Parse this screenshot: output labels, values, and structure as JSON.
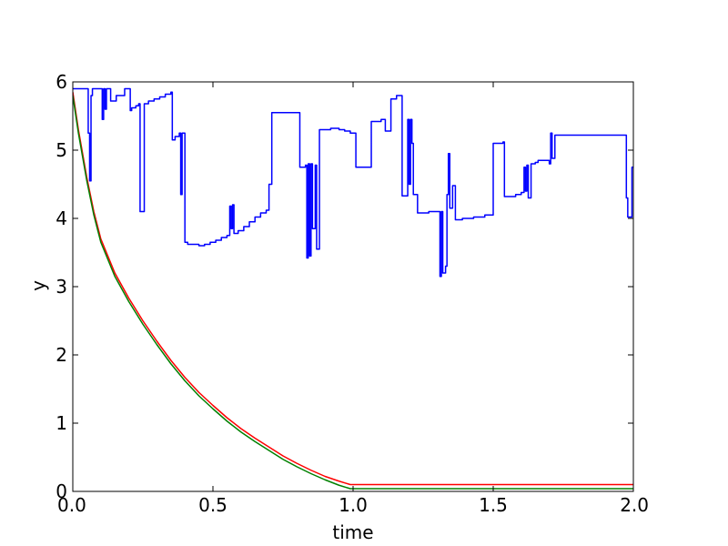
{
  "chart_data": {
    "type": "line",
    "title": "",
    "xlabel": "time",
    "ylabel": "y",
    "xlim": [
      0.0,
      2.0
    ],
    "ylim": [
      0,
      6
    ],
    "x_ticks": [
      0.0,
      0.5,
      1.0,
      1.5,
      2.0
    ],
    "x_tick_labels": [
      "0.0",
      "0.5",
      "1.0",
      "1.5",
      "2.0"
    ],
    "y_ticks": [
      0,
      1,
      2,
      3,
      4,
      5,
      6
    ],
    "y_tick_labels": [
      "0",
      "1",
      "2",
      "3",
      "4",
      "5",
      "6"
    ],
    "grid": false,
    "series": [
      {
        "color": "#0000ff",
        "step": true,
        "points": [
          [
            0.0,
            5.9
          ],
          [
            0.05,
            5.9
          ],
          [
            0.055,
            5.25
          ],
          [
            0.06,
            4.55
          ],
          [
            0.065,
            5.8
          ],
          [
            0.07,
            5.9
          ],
          [
            0.1,
            5.9
          ],
          [
            0.105,
            5.45
          ],
          [
            0.11,
            5.9
          ],
          [
            0.115,
            5.6
          ],
          [
            0.12,
            5.9
          ],
          [
            0.13,
            5.9
          ],
          [
            0.135,
            5.72
          ],
          [
            0.15,
            5.72
          ],
          [
            0.155,
            5.8
          ],
          [
            0.18,
            5.8
          ],
          [
            0.185,
            5.9
          ],
          [
            0.2,
            5.9
          ],
          [
            0.205,
            5.58
          ],
          [
            0.21,
            5.62
          ],
          [
            0.225,
            5.65
          ],
          [
            0.235,
            5.68
          ],
          [
            0.24,
            4.1
          ],
          [
            0.25,
            4.1
          ],
          [
            0.255,
            5.68
          ],
          [
            0.27,
            5.72
          ],
          [
            0.29,
            5.75
          ],
          [
            0.31,
            5.78
          ],
          [
            0.33,
            5.82
          ],
          [
            0.35,
            5.85
          ],
          [
            0.355,
            5.15
          ],
          [
            0.365,
            5.2
          ],
          [
            0.38,
            5.25
          ],
          [
            0.385,
            4.35
          ],
          [
            0.39,
            5.25
          ],
          [
            0.4,
            3.65
          ],
          [
            0.41,
            3.62
          ],
          [
            0.45,
            3.6
          ],
          [
            0.47,
            3.62
          ],
          [
            0.49,
            3.65
          ],
          [
            0.51,
            3.68
          ],
          [
            0.53,
            3.72
          ],
          [
            0.55,
            3.75
          ],
          [
            0.56,
            4.18
          ],
          [
            0.565,
            3.85
          ],
          [
            0.57,
            4.2
          ],
          [
            0.575,
            3.78
          ],
          [
            0.59,
            3.82
          ],
          [
            0.61,
            3.88
          ],
          [
            0.63,
            3.95
          ],
          [
            0.65,
            4.02
          ],
          [
            0.67,
            4.08
          ],
          [
            0.69,
            4.12
          ],
          [
            0.7,
            4.5
          ],
          [
            0.71,
            5.55
          ],
          [
            0.8,
            5.55
          ],
          [
            0.81,
            4.75
          ],
          [
            0.83,
            4.78
          ],
          [
            0.835,
            3.42
          ],
          [
            0.84,
            4.8
          ],
          [
            0.845,
            3.45
          ],
          [
            0.85,
            4.8
          ],
          [
            0.855,
            3.85
          ],
          [
            0.865,
            4.78
          ],
          [
            0.87,
            3.55
          ],
          [
            0.875,
            3.55
          ],
          [
            0.88,
            5.3
          ],
          [
            0.92,
            5.32
          ],
          [
            0.95,
            5.3
          ],
          [
            0.97,
            5.28
          ],
          [
            0.99,
            5.25
          ],
          [
            1.0,
            5.25
          ],
          [
            1.01,
            4.75
          ],
          [
            1.05,
            4.75
          ],
          [
            1.065,
            5.42
          ],
          [
            1.1,
            5.45
          ],
          [
            1.115,
            5.28
          ],
          [
            1.13,
            5.28
          ],
          [
            1.135,
            5.75
          ],
          [
            1.155,
            5.8
          ],
          [
            1.17,
            5.8
          ],
          [
            1.175,
            4.33
          ],
          [
            1.19,
            4.33
          ],
          [
            1.195,
            5.45
          ],
          [
            1.2,
            4.5
          ],
          [
            1.205,
            5.45
          ],
          [
            1.21,
            5.1
          ],
          [
            1.215,
            4.35
          ],
          [
            1.225,
            4.35
          ],
          [
            1.23,
            4.08
          ],
          [
            1.26,
            4.08
          ],
          [
            1.27,
            4.1
          ],
          [
            1.305,
            4.1
          ],
          [
            1.31,
            3.15
          ],
          [
            1.315,
            4.1
          ],
          [
            1.32,
            3.2
          ],
          [
            1.325,
            3.2
          ],
          [
            1.33,
            3.3
          ],
          [
            1.335,
            4.35
          ],
          [
            1.34,
            4.95
          ],
          [
            1.345,
            4.15
          ],
          [
            1.35,
            4.15
          ],
          [
            1.355,
            4.48
          ],
          [
            1.365,
            3.98
          ],
          [
            1.39,
            4.0
          ],
          [
            1.43,
            4.02
          ],
          [
            1.47,
            4.05
          ],
          [
            1.49,
            4.05
          ],
          [
            1.5,
            5.05
          ],
          [
            1.5,
            5.1
          ],
          [
            1.535,
            5.12
          ],
          [
            1.54,
            4.32
          ],
          [
            1.56,
            4.32
          ],
          [
            1.58,
            4.35
          ],
          [
            1.6,
            4.38
          ],
          [
            1.61,
            4.75
          ],
          [
            1.615,
            4.4
          ],
          [
            1.62,
            4.78
          ],
          [
            1.625,
            4.3
          ],
          [
            1.63,
            4.3
          ],
          [
            1.635,
            4.8
          ],
          [
            1.65,
            4.82
          ],
          [
            1.66,
            4.85
          ],
          [
            1.69,
            4.85
          ],
          [
            1.7,
            4.8
          ],
          [
            1.705,
            5.25
          ],
          [
            1.71,
            4.88
          ],
          [
            1.72,
            5.22
          ],
          [
            1.75,
            5.22
          ],
          [
            1.8,
            5.22
          ],
          [
            1.85,
            5.22
          ],
          [
            1.9,
            5.22
          ],
          [
            1.97,
            5.22
          ],
          [
            1.975,
            4.3
          ],
          [
            1.98,
            4.02
          ],
          [
            1.99,
            4.02
          ],
          [
            1.995,
            4.75
          ],
          [
            2.0,
            4.75
          ]
        ]
      },
      {
        "color": "#ff0000",
        "step": false,
        "points": [
          [
            0.0,
            5.85
          ],
          [
            0.02,
            5.3
          ],
          [
            0.05,
            4.6
          ],
          [
            0.075,
            4.1
          ],
          [
            0.1,
            3.7
          ],
          [
            0.15,
            3.2
          ],
          [
            0.2,
            2.83
          ],
          [
            0.25,
            2.5
          ],
          [
            0.3,
            2.2
          ],
          [
            0.35,
            1.92
          ],
          [
            0.4,
            1.67
          ],
          [
            0.45,
            1.45
          ],
          [
            0.5,
            1.26
          ],
          [
            0.55,
            1.08
          ],
          [
            0.6,
            0.92
          ],
          [
            0.65,
            0.78
          ],
          [
            0.7,
            0.65
          ],
          [
            0.75,
            0.52
          ],
          [
            0.8,
            0.41
          ],
          [
            0.85,
            0.31
          ],
          [
            0.9,
            0.22
          ],
          [
            0.95,
            0.15
          ],
          [
            0.99,
            0.1
          ],
          [
            1.01,
            0.1
          ],
          [
            1.5,
            0.1
          ],
          [
            2.0,
            0.1
          ]
        ]
      },
      {
        "color": "#008000",
        "step": false,
        "points": [
          [
            0.0,
            5.8
          ],
          [
            0.02,
            5.25
          ],
          [
            0.05,
            4.55
          ],
          [
            0.075,
            4.05
          ],
          [
            0.1,
            3.65
          ],
          [
            0.15,
            3.15
          ],
          [
            0.2,
            2.78
          ],
          [
            0.25,
            2.45
          ],
          [
            0.3,
            2.15
          ],
          [
            0.35,
            1.87
          ],
          [
            0.4,
            1.62
          ],
          [
            0.45,
            1.4
          ],
          [
            0.5,
            1.21
          ],
          [
            0.55,
            1.03
          ],
          [
            0.6,
            0.87
          ],
          [
            0.65,
            0.73
          ],
          [
            0.7,
            0.6
          ],
          [
            0.75,
            0.47
          ],
          [
            0.8,
            0.36
          ],
          [
            0.85,
            0.26
          ],
          [
            0.9,
            0.17
          ],
          [
            0.95,
            0.09
          ],
          [
            0.99,
            0.04
          ],
          [
            1.01,
            0.04
          ],
          [
            1.5,
            0.04
          ],
          [
            2.0,
            0.04
          ]
        ]
      }
    ]
  }
}
